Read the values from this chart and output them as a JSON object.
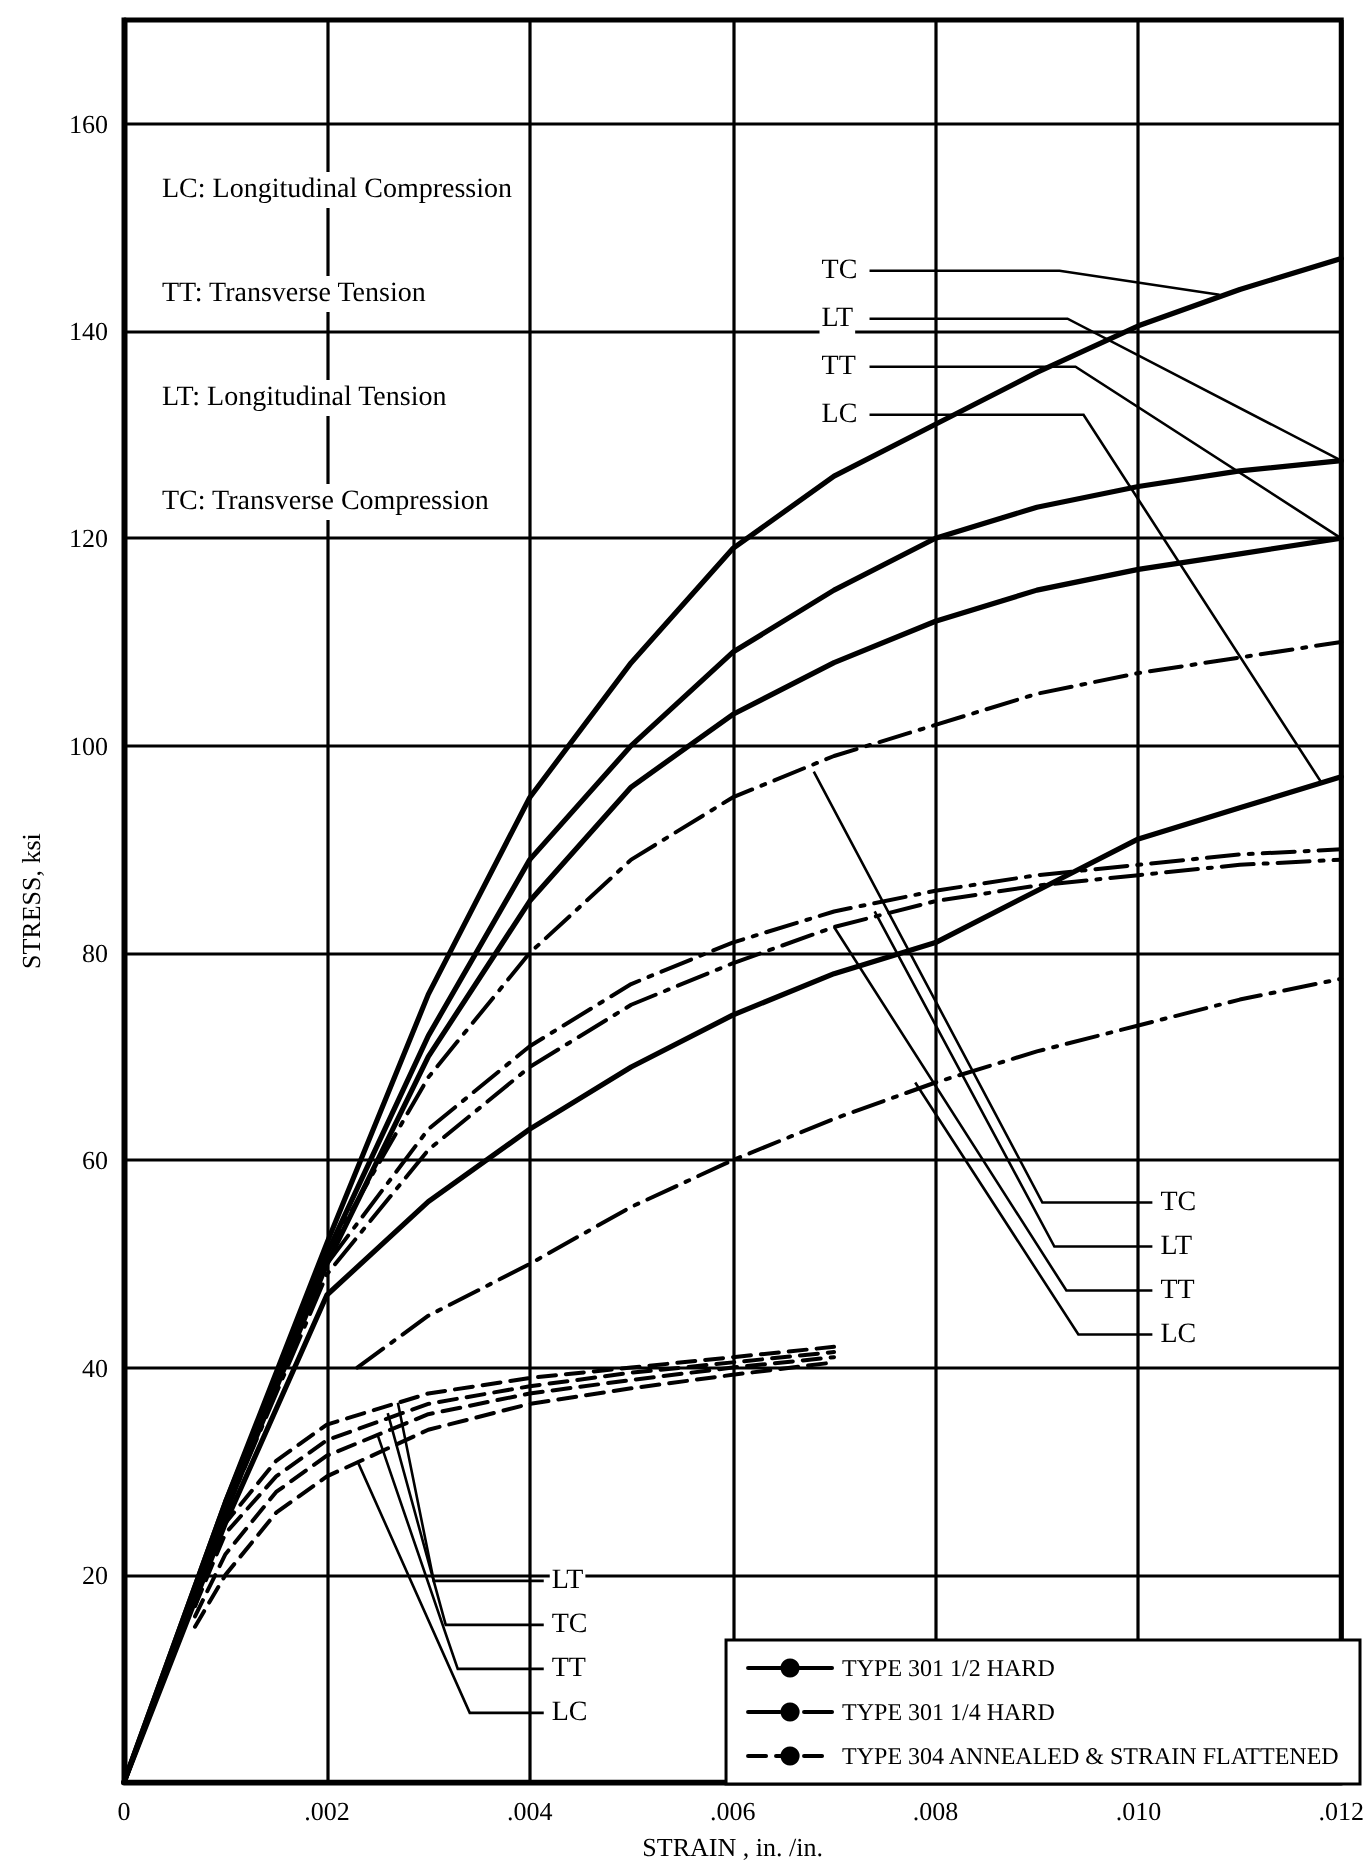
{
  "chart_data": {
    "type": "line",
    "xlabel": "STRAIN , in. /in.",
    "ylabel": "STRESS, ksi",
    "xlim": [
      0,
      0.012
    ],
    "xticks": [
      {
        "value": 0,
        "label": "0"
      },
      {
        "value": 0.002,
        "label": ".002"
      },
      {
        "value": 0.004,
        "label": ".004"
      },
      {
        "value": 0.006,
        "label": ".006"
      },
      {
        "value": 0.008,
        "label": ".008"
      },
      {
        "value": 0.01,
        "label": ".010"
      },
      {
        "value": 0.012,
        "label": ".012"
      }
    ],
    "ylim": [
      0,
      170
    ],
    "yticks": [
      {
        "value": 0,
        "label": null
      },
      20,
      40,
      60,
      80,
      100,
      120,
      140,
      160
    ],
    "grid": true,
    "legend": "bottom right",
    "marker": "none",
    "series": [
      {
        "name": "TYPE 301 1/2 HARD",
        "color": "#000000",
        "line_style": "solid",
        "x": [
          0,
          0.001,
          0.002,
          0.003,
          0.004,
          0.005,
          0.006,
          0.007,
          0.008,
          0.009,
          0.01,
          0.011,
          0.012
        ],
        "values": [
          0,
          27,
          52,
          76,
          95,
          108,
          119,
          126,
          131,
          136,
          140.5,
          144,
          147
        ]
      },
      {
        "color": "#000000",
        "line_style": "solid",
        "x": [
          0,
          0.001,
          0.002,
          0.003,
          0.004,
          0.005,
          0.006,
          0.007,
          0.008,
          0.009,
          0.01,
          0.011,
          0.012
        ],
        "values": [
          0,
          27,
          51,
          72,
          89,
          100,
          109,
          115,
          120,
          123,
          125,
          126.5,
          127.5
        ]
      },
      {
        "color": "#000000",
        "line_style": "solid",
        "x": [
          0,
          0.001,
          0.002,
          0.003,
          0.004,
          0.005,
          0.006,
          0.007,
          0.008,
          0.009,
          0.01,
          0.011,
          0.012
        ],
        "values": [
          0,
          26,
          50,
          70,
          85,
          96,
          103,
          108,
          112,
          115,
          117,
          118.5,
          120
        ]
      },
      {
        "color": "#000000",
        "line_style": "solid",
        "x": [
          0,
          0.001,
          0.002,
          0.003,
          0.004,
          0.005,
          0.006,
          0.007,
          0.008,
          0.009,
          0.01,
          0.011,
          0.012
        ],
        "values": [
          0,
          25,
          47,
          56,
          63,
          69,
          74,
          78,
          81,
          86,
          91,
          94,
          97
        ]
      },
      {
        "name": "TYPE 301 1/4 HARD",
        "color": "#000000",
        "line_style": "dashdot",
        "x": [
          0,
          0.001,
          0.002,
          0.003,
          0.004,
          0.005,
          0.006,
          0.007,
          0.008,
          0.009,
          0.01,
          0.011,
          0.012
        ],
        "values": [
          0,
          26,
          51,
          68,
          80,
          89,
          95,
          99,
          102,
          105,
          107,
          108.5,
          110
        ]
      },
      {
        "color": "#000000",
        "line_style": "dashdot",
        "x": [
          0,
          0.001,
          0.002,
          0.003,
          0.004,
          0.005,
          0.006,
          0.007,
          0.008,
          0.009,
          0.01,
          0.011,
          0.012
        ],
        "values": [
          0,
          26,
          50,
          63,
          71,
          77,
          81,
          84,
          86,
          87.5,
          88.5,
          89.5,
          90
        ]
      },
      {
        "color": "#000000",
        "line_style": "dashdot",
        "x": [
          0,
          0.001,
          0.002,
          0.003,
          0.004,
          0.005,
          0.006,
          0.007,
          0.008,
          0.009,
          0.01,
          0.011,
          0.012
        ],
        "values": [
          0,
          26,
          49,
          61,
          69,
          75,
          79,
          82.5,
          85,
          86.5,
          87.5,
          88.5,
          89
        ]
      },
      {
        "color": "#000000",
        "line_style": "dashdot",
        "x": [
          0.0023,
          0.003,
          0.004,
          0.005,
          0.006,
          0.007,
          0.008,
          0.009,
          0.01,
          0.011,
          0.012
        ],
        "values": [
          40,
          45,
          50,
          55.5,
          60,
          64,
          67.5,
          70.5,
          73,
          75.5,
          77.5
        ]
      },
      {
        "name": "TYPE 304 ANNEALED & STRAIN FLATTENED",
        "color": "#000000",
        "line_style": "dashed",
        "x": [
          0.0007,
          0.001,
          0.0015,
          0.002,
          0.003,
          0.004,
          0.005,
          0.006,
          0.007
        ],
        "values": [
          17,
          25,
          31,
          34.5,
          37.5,
          39,
          40,
          41,
          42
        ]
      },
      {
        "color": "#000000",
        "line_style": "dashed",
        "x": [
          0.0007,
          0.001,
          0.0015,
          0.002,
          0.003,
          0.004,
          0.005,
          0.006,
          0.007
        ],
        "values": [
          17,
          24,
          29.5,
          33,
          36.5,
          38.2,
          39.5,
          40.5,
          41.5
        ]
      },
      {
        "color": "#000000",
        "line_style": "dashed",
        "x": [
          0.0007,
          0.001,
          0.0015,
          0.002,
          0.003,
          0.004,
          0.005,
          0.006,
          0.007
        ],
        "values": [
          16,
          22,
          28,
          31.5,
          35.5,
          37.5,
          38.8,
          40,
          41
        ]
      },
      {
        "color": "#000000",
        "line_style": "dashed",
        "x": [
          0.0007,
          0.001,
          0.0015,
          0.002,
          0.003,
          0.004,
          0.005,
          0.006,
          0.007
        ],
        "values": [
          15,
          20,
          26,
          29.5,
          34,
          36.5,
          38,
          39.3,
          40.5
        ]
      }
    ],
    "annotations": [
      "LC: Longitudinal Compression",
      "TT: Transverse Tension",
      "LT: Longitudinal Tension",
      "TC: Transverse Compression",
      {
        "text": "TC",
        "x": 0.0108,
        "y": 143.5
      },
      {
        "text": "LT",
        "x": 0.012,
        "y": 127.5
      },
      {
        "text": "TT",
        "x": 0.012,
        "y": 120
      },
      {
        "text": "LC",
        "x": 0.0118,
        "y": 96.5
      },
      {
        "text": "TC",
        "x": 0.0068,
        "y": 97.5
      },
      {
        "text": "LT",
        "x": 0.0074,
        "y": 84
      },
      {
        "text": "TT",
        "x": 0.007,
        "y": 82.5
      },
      {
        "text": "LC",
        "x": 0.0078,
        "y": 67.5
      },
      {
        "text": "LT",
        "x": 0.0027,
        "y": 36.6
      },
      {
        "text": "TC",
        "x": 0.0026,
        "y": 35.6
      },
      {
        "text": "TT",
        "x": 0.0025,
        "y": 33.5
      },
      {
        "text": "LC",
        "x": 0.0023,
        "y": 31
      }
    ]
  }
}
